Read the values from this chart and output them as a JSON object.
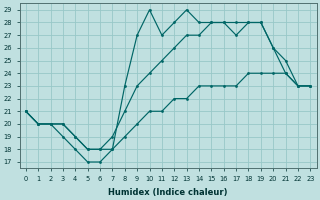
{
  "xlabel": "Humidex (Indice chaleur)",
  "bg_color": "#c0e0e0",
  "grid_color": "#98c8c8",
  "line_color": "#006666",
  "x": [
    0,
    1,
    2,
    3,
    4,
    5,
    6,
    7,
    8,
    9,
    10,
    11,
    12,
    13,
    14,
    15,
    16,
    17,
    18,
    19,
    20,
    21,
    22,
    23
  ],
  "line_top": [
    21,
    20,
    20,
    19,
    18,
    17,
    17,
    18,
    23,
    27,
    29,
    27,
    28,
    29,
    28,
    28,
    28,
    28,
    28,
    28,
    26,
    24,
    23,
    23
  ],
  "line_mid": [
    21,
    20,
    20,
    20,
    19,
    18,
    18,
    19,
    21,
    23,
    24,
    25,
    26,
    27,
    27,
    28,
    28,
    27,
    28,
    28,
    26,
    25,
    23,
    23
  ],
  "line_bot": [
    21,
    20,
    20,
    20,
    19,
    18,
    18,
    18,
    19,
    20,
    21,
    21,
    22,
    22,
    23,
    23,
    23,
    23,
    24,
    24,
    24,
    24,
    23,
    23
  ],
  "ylim_min": 17,
  "ylim_max": 29
}
